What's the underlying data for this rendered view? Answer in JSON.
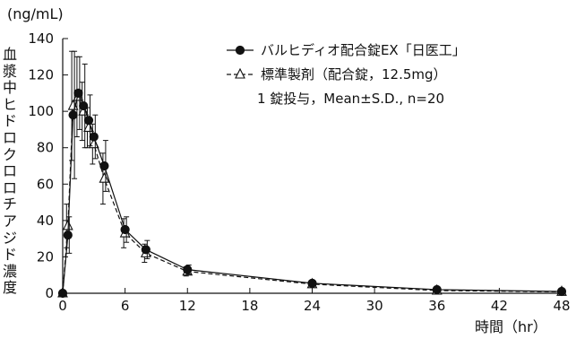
{
  "chart_data": {
    "type": "line",
    "ylabel_unit": "(ng/mL)",
    "ylabel": "血漿中ヒドロクロロチアジド濃度",
    "xlabel": "時間（hr）",
    "xlim": [
      0,
      48
    ],
    "ylim": [
      0,
      140
    ],
    "x_ticks": [
      0,
      6,
      12,
      18,
      24,
      30,
      36,
      42,
      48
    ],
    "y_ticks": [
      0,
      20,
      40,
      60,
      80,
      100,
      120,
      140
    ],
    "legend": {
      "placement": "top-right",
      "note": "1 錠投与，Mean±S.D., n=20"
    },
    "series": [
      {
        "name": "バルヒディオ配合錠EX「日医工」",
        "marker": "filled-circle",
        "line": "solid",
        "x": [
          0,
          0.5,
          1,
          1.5,
          2,
          2.5,
          3,
          4,
          6,
          8,
          12,
          24,
          36,
          48
        ],
        "y": [
          0,
          32,
          98,
          110,
          103,
          95,
          86,
          70,
          35,
          24,
          13,
          5.5,
          2,
          1
        ],
        "err": [
          0,
          10,
          35,
          20,
          23,
          14,
          12,
          14,
          7,
          5,
          2.5,
          1,
          0.5,
          0.3
        ]
      },
      {
        "name": "標準製剤（配合錠，12.5mg）",
        "marker": "open-triangle",
        "line": "dashed",
        "x": [
          0,
          0.5,
          1,
          1.5,
          2,
          2.5,
          3,
          4,
          6,
          8,
          12,
          24,
          36,
          48
        ],
        "y": [
          0,
          37,
          103,
          108,
          100,
          91,
          82,
          63,
          33,
          22,
          12,
          5,
          1.5,
          0.8
        ],
        "err": [
          0,
          12,
          30,
          22,
          16,
          11,
          11,
          14,
          8,
          5,
          2.5,
          1,
          0.5,
          0.3
        ]
      }
    ]
  }
}
